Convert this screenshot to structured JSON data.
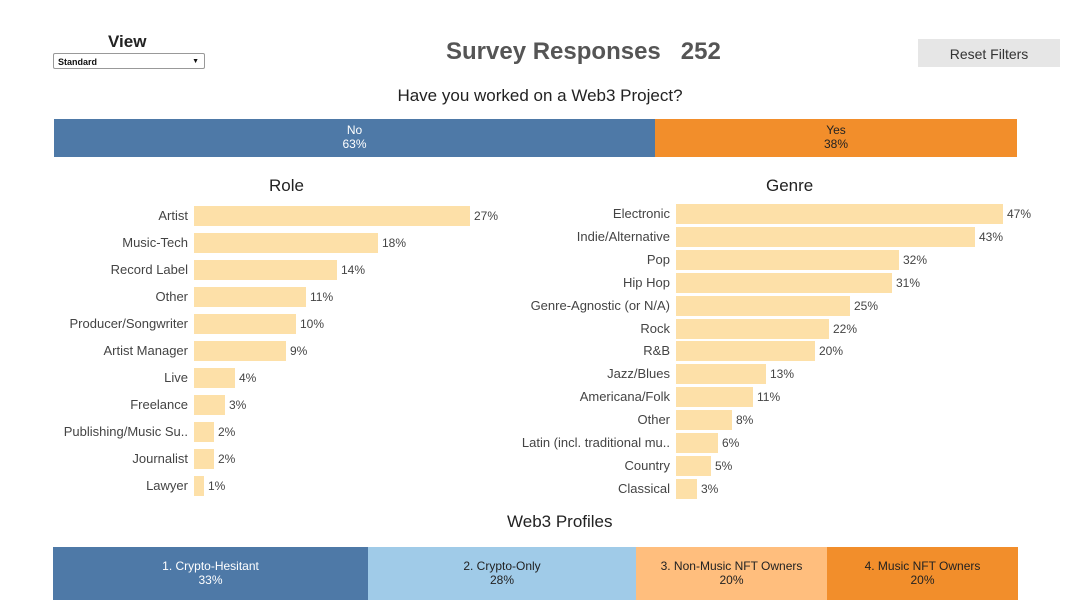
{
  "view": {
    "label": "View",
    "selected": "Standard"
  },
  "header": {
    "title": "Survey Responses",
    "count": "252"
  },
  "reset_button": "Reset Filters",
  "web3": {
    "question": "Have you worked on a Web3 Project?",
    "segments": [
      {
        "label": "No",
        "pct": "63%",
        "value": 63,
        "color": "#4e79a7",
        "text_color": "#ffffff"
      },
      {
        "label": "Yes",
        "pct": "38%",
        "value": 38,
        "color": "#f28e2b",
        "text_color": "#222222"
      }
    ]
  },
  "role": {
    "title": "Role",
    "items": [
      {
        "label": "Artist",
        "value": 27,
        "pct": "27%"
      },
      {
        "label": "Music-Tech",
        "value": 18,
        "pct": "18%"
      },
      {
        "label": "Record Label",
        "value": 14,
        "pct": "14%"
      },
      {
        "label": "Other",
        "value": 11,
        "pct": "11%"
      },
      {
        "label": "Producer/Songwriter",
        "value": 10,
        "pct": "10%"
      },
      {
        "label": "Artist Manager",
        "value": 9,
        "pct": "9%"
      },
      {
        "label": "Live",
        "value": 4,
        "pct": "4%"
      },
      {
        "label": "Freelance",
        "value": 3,
        "pct": "3%"
      },
      {
        "label": "Publishing/Music Su..",
        "value": 2,
        "pct": "2%"
      },
      {
        "label": "Journalist",
        "value": 2,
        "pct": "2%"
      },
      {
        "label": "Lawyer",
        "value": 1,
        "pct": "1%"
      }
    ]
  },
  "genre": {
    "title": "Genre",
    "items": [
      {
        "label": "Electronic",
        "value": 47,
        "pct": "47%"
      },
      {
        "label": "Indie/Alternative",
        "value": 43,
        "pct": "43%"
      },
      {
        "label": "Pop",
        "value": 32,
        "pct": "32%"
      },
      {
        "label": "Hip Hop",
        "value": 31,
        "pct": "31%"
      },
      {
        "label": "Genre-Agnostic (or N/A)",
        "value": 25,
        "pct": "25%"
      },
      {
        "label": "Rock",
        "value": 22,
        "pct": "22%"
      },
      {
        "label": "R&B",
        "value": 20,
        "pct": "20%"
      },
      {
        "label": "Jazz/Blues",
        "value": 13,
        "pct": "13%"
      },
      {
        "label": "Americana/Folk",
        "value": 11,
        "pct": "11%"
      },
      {
        "label": "Other",
        "value": 8,
        "pct": "8%"
      },
      {
        "label": "Latin (incl. traditional mu..",
        "value": 6,
        "pct": "6%"
      },
      {
        "label": "Country",
        "value": 5,
        "pct": "5%"
      },
      {
        "label": "Classical",
        "value": 3,
        "pct": "3%"
      }
    ]
  },
  "profiles": {
    "title": "Web3 Profiles",
    "segments": [
      {
        "label": "1. Crypto-Hesitant",
        "pct": "33%",
        "value": 33,
        "color": "#4e79a7",
        "text_color": "#ffffff"
      },
      {
        "label": "2. Crypto-Only",
        "pct": "28%",
        "value": 28,
        "color": "#a0cbe8",
        "text_color": "#222222"
      },
      {
        "label": "3. Non-Music NFT Owners",
        "pct": "20%",
        "value": 20,
        "color": "#ffbe7d",
        "text_color": "#222222"
      },
      {
        "label": "4. Music NFT Owners",
        "pct": "20%",
        "value": 20,
        "color": "#f28e2b",
        "text_color": "#222222"
      }
    ]
  },
  "chart_data": [
    {
      "type": "bar",
      "title": "Have you worked on a Web3 Project?",
      "categories": [
        "No",
        "Yes"
      ],
      "values": [
        63,
        38
      ]
    },
    {
      "type": "bar",
      "title": "Role",
      "categories": [
        "Artist",
        "Music-Tech",
        "Record Label",
        "Other",
        "Producer/Songwriter",
        "Artist Manager",
        "Live",
        "Freelance",
        "Publishing/Music Su..",
        "Journalist",
        "Lawyer"
      ],
      "values": [
        27,
        18,
        14,
        11,
        10,
        9,
        4,
        3,
        2,
        2,
        1
      ]
    },
    {
      "type": "bar",
      "title": "Genre",
      "categories": [
        "Electronic",
        "Indie/Alternative",
        "Pop",
        "Hip Hop",
        "Genre-Agnostic (or N/A)",
        "Rock",
        "R&B",
        "Jazz/Blues",
        "Americana/Folk",
        "Other",
        "Latin (incl. traditional mu..",
        "Country",
        "Classical"
      ],
      "values": [
        47,
        43,
        32,
        31,
        25,
        22,
        20,
        13,
        11,
        8,
        6,
        5,
        3
      ]
    },
    {
      "type": "bar",
      "title": "Web3 Profiles",
      "categories": [
        "1. Crypto-Hesitant",
        "2. Crypto-Only",
        "3. Non-Music NFT Owners",
        "4. Music NFT Owners"
      ],
      "values": [
        33,
        28,
        20,
        20
      ]
    }
  ]
}
